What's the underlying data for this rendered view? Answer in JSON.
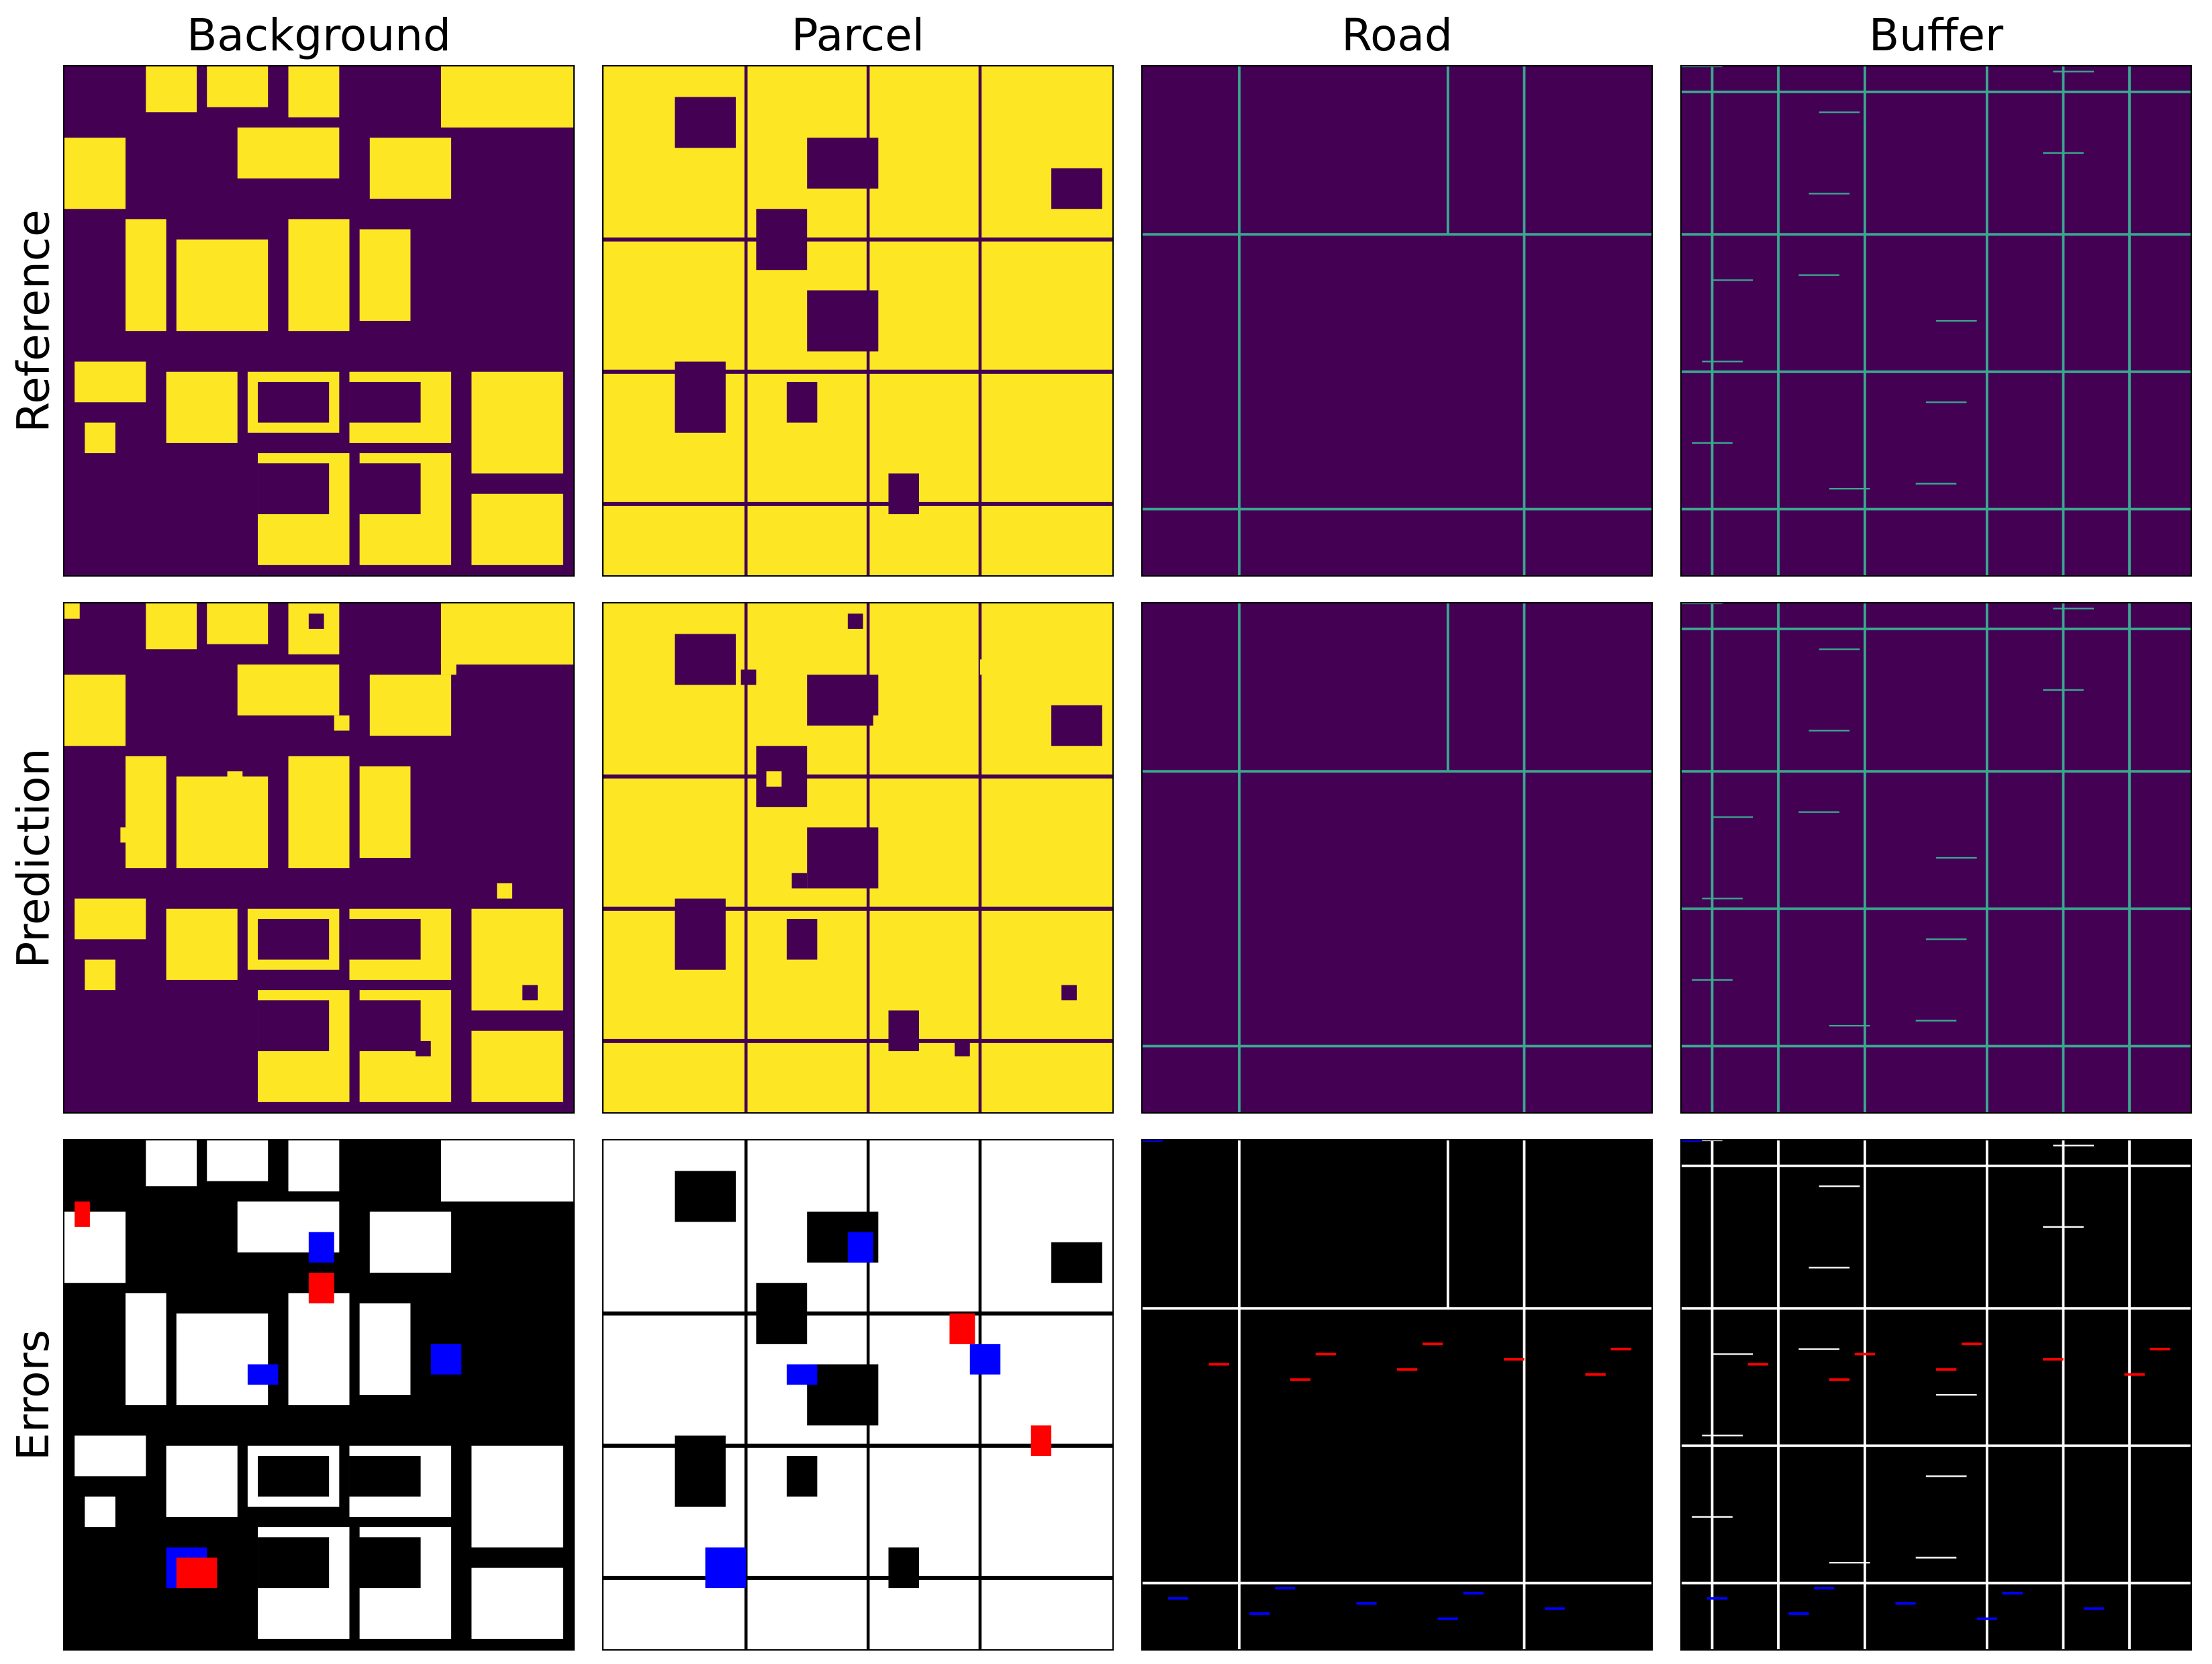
{
  "columns": [
    "Background",
    "Parcel",
    "Road",
    "Buffer"
  ],
  "rows": [
    "Reference",
    "Prediction",
    "Errors"
  ],
  "colors": {
    "purple": "#440154",
    "yellow": "#fde725",
    "teal": "#3aa88f",
    "black": "#000000",
    "white": "#ffffff",
    "red": "#ff0000",
    "blue": "#0000ff"
  }
}
